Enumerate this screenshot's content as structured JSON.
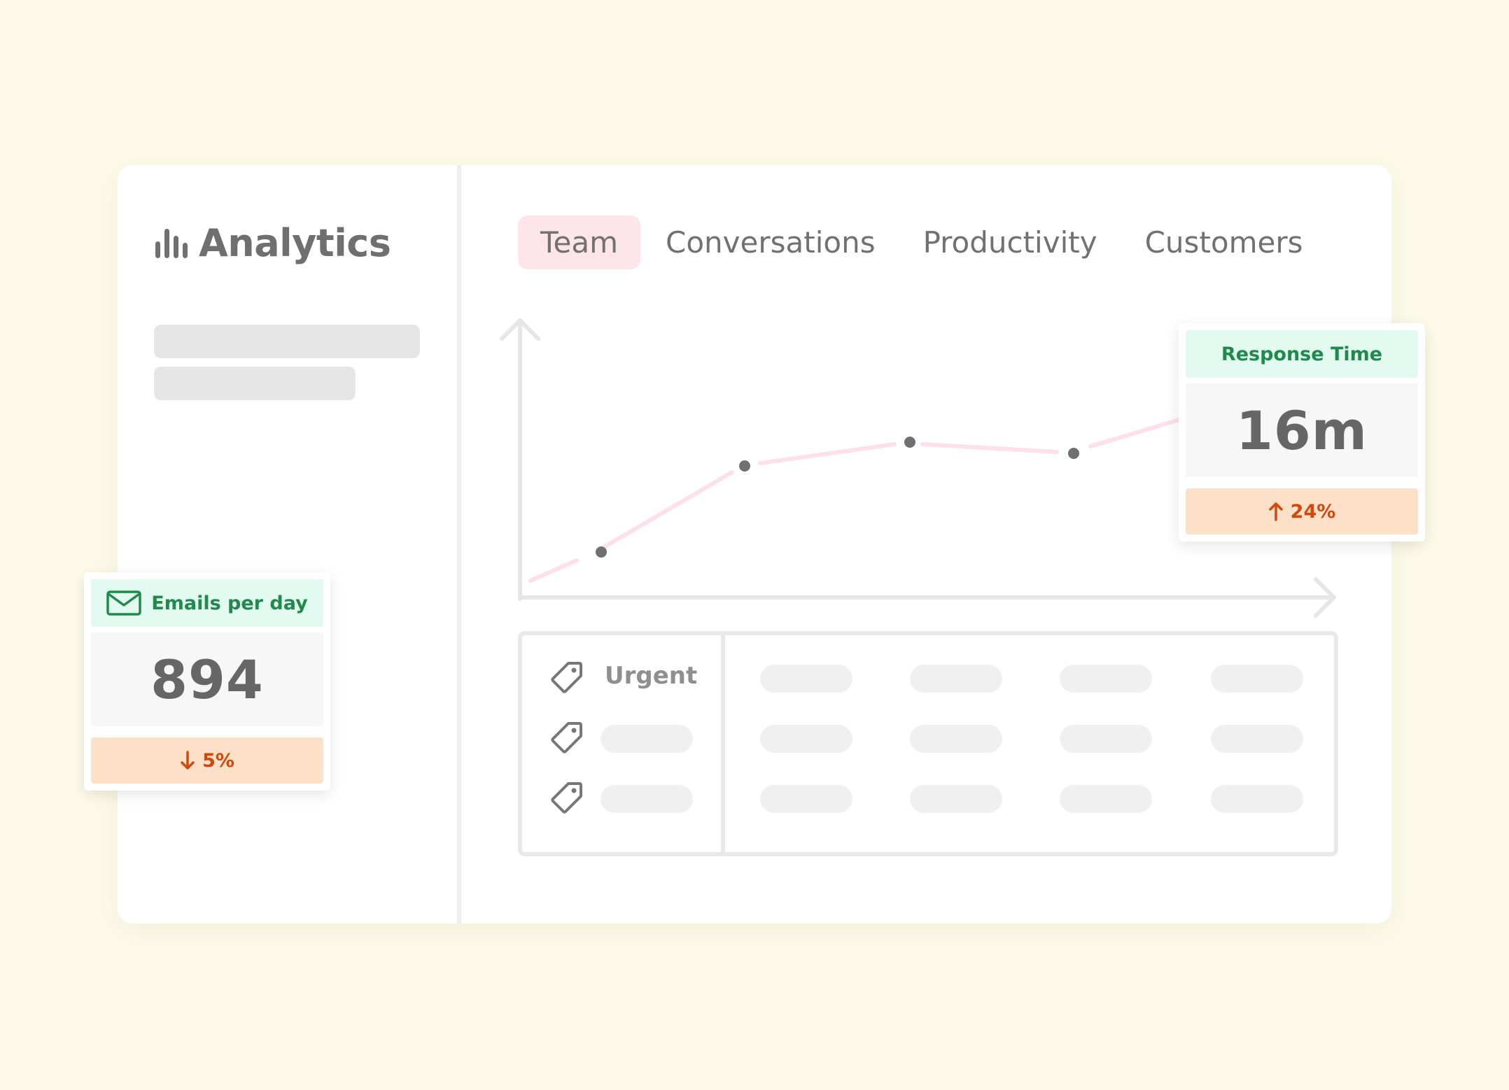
{
  "sidebar": {
    "title": "Analytics",
    "title_icon": "bar-chart-icon"
  },
  "tabs": [
    {
      "label": "Team",
      "active": true
    },
    {
      "label": "Conversations",
      "active": false
    },
    {
      "label": "Productivity",
      "active": false
    },
    {
      "label": "Customers",
      "active": false
    }
  ],
  "tags_table": {
    "rows": [
      {
        "icon": "tag-icon",
        "label": "Urgent"
      },
      {
        "icon": "tag-icon",
        "label": ""
      },
      {
        "icon": "tag-icon",
        "label": ""
      }
    ]
  },
  "cards": {
    "response_time": {
      "label": "Response Time",
      "value": "16m",
      "change": "24%",
      "change_direction": "up",
      "change_icon": "arrow-up-icon"
    },
    "emails_per_day": {
      "label": "Emails per day",
      "label_icon": "envelope-icon",
      "value": "894",
      "change": "5%",
      "change_direction": "down",
      "change_icon": "arrow-down-icon"
    }
  },
  "colors": {
    "background": "#fdfae9",
    "active_tab": "#fde5ea",
    "line": "#fde1e6",
    "card_header": "#e2faf0",
    "card_header_text": "#1f8a4c",
    "card_footer": "#fde0c8",
    "card_footer_text": "#d2470e"
  }
}
